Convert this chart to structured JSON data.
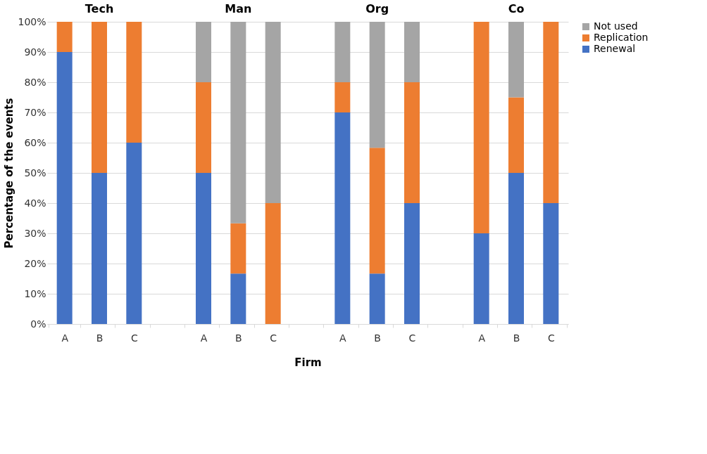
{
  "chart_data": {
    "type": "bar",
    "stacked": true,
    "xlabel": "Firm",
    "ylabel": "Percentage of the events",
    "categories": [
      "A",
      "B",
      "C",
      null,
      "A",
      "B",
      "C",
      null,
      "A",
      "B",
      "C",
      null,
      "A",
      "B",
      "C"
    ],
    "series": [
      {
        "name": "Renewal",
        "color": "#4472c4",
        "values": [
          90,
          50,
          60,
          null,
          50,
          16.7,
          0,
          null,
          70,
          16.7,
          40,
          null,
          30,
          50,
          40
        ]
      },
      {
        "name": "Replication",
        "color": "#ed7d31",
        "values": [
          10,
          50,
          40,
          null,
          30,
          16.6,
          40,
          null,
          10,
          41.6,
          40,
          null,
          70,
          25,
          60
        ]
      },
      {
        "name": "Not used",
        "color": "#a5a5a5",
        "values": [
          0,
          0,
          0,
          null,
          20,
          66.7,
          60,
          null,
          20,
          41.7,
          20,
          null,
          0,
          25,
          0
        ]
      }
    ],
    "annotations": [
      "Tech",
      "Man",
      "Org",
      "Co"
    ],
    "ylim": [
      0,
      100
    ],
    "yticks": [
      {
        "value": 0,
        "label": "0%"
      },
      {
        "value": 10,
        "label": "10%"
      },
      {
        "value": 20,
        "label": "20%"
      },
      {
        "value": 30,
        "label": "30%"
      },
      {
        "value": 40,
        "label": "40%"
      },
      {
        "value": 50,
        "label": "50%"
      },
      {
        "value": 60,
        "label": "60%"
      },
      {
        "value": 70,
        "label": "70%"
      },
      {
        "value": 80,
        "label": "80%"
      },
      {
        "value": 90,
        "label": "90%"
      },
      {
        "value": 100,
        "label": "100%"
      }
    ],
    "grid": "y",
    "legend": "right"
  }
}
